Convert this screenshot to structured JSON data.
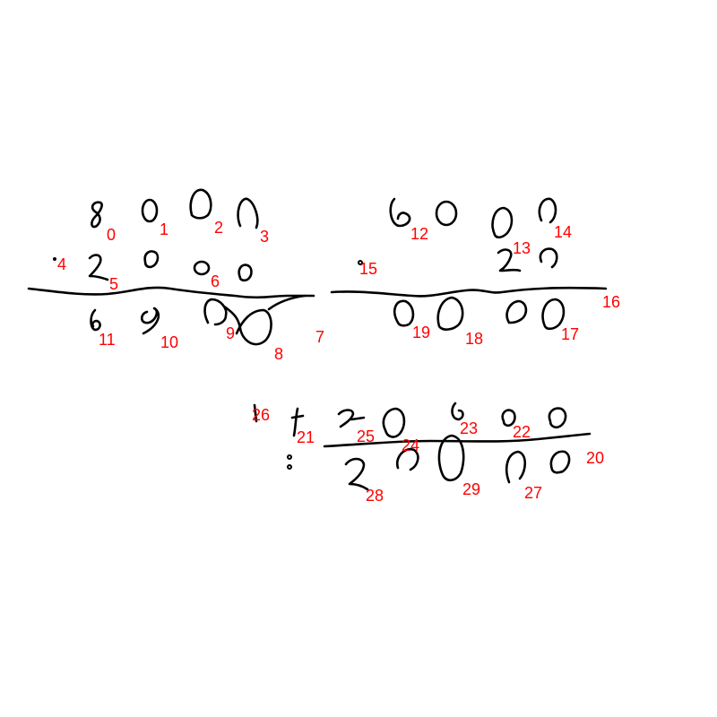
{
  "colors": {
    "background": "#ffffff",
    "ink": "#000000",
    "label": "#ff0000"
  },
  "stroke_labels": [
    "0",
    "1",
    "2",
    "3",
    "4",
    "5",
    "6",
    "7",
    "8",
    "9",
    "10",
    "11",
    "12",
    "13",
    "14",
    "15",
    "16",
    "17",
    "18",
    "19",
    "20",
    "21",
    "22",
    "23",
    "24",
    "25",
    "26",
    "27",
    "28",
    "29"
  ]
}
